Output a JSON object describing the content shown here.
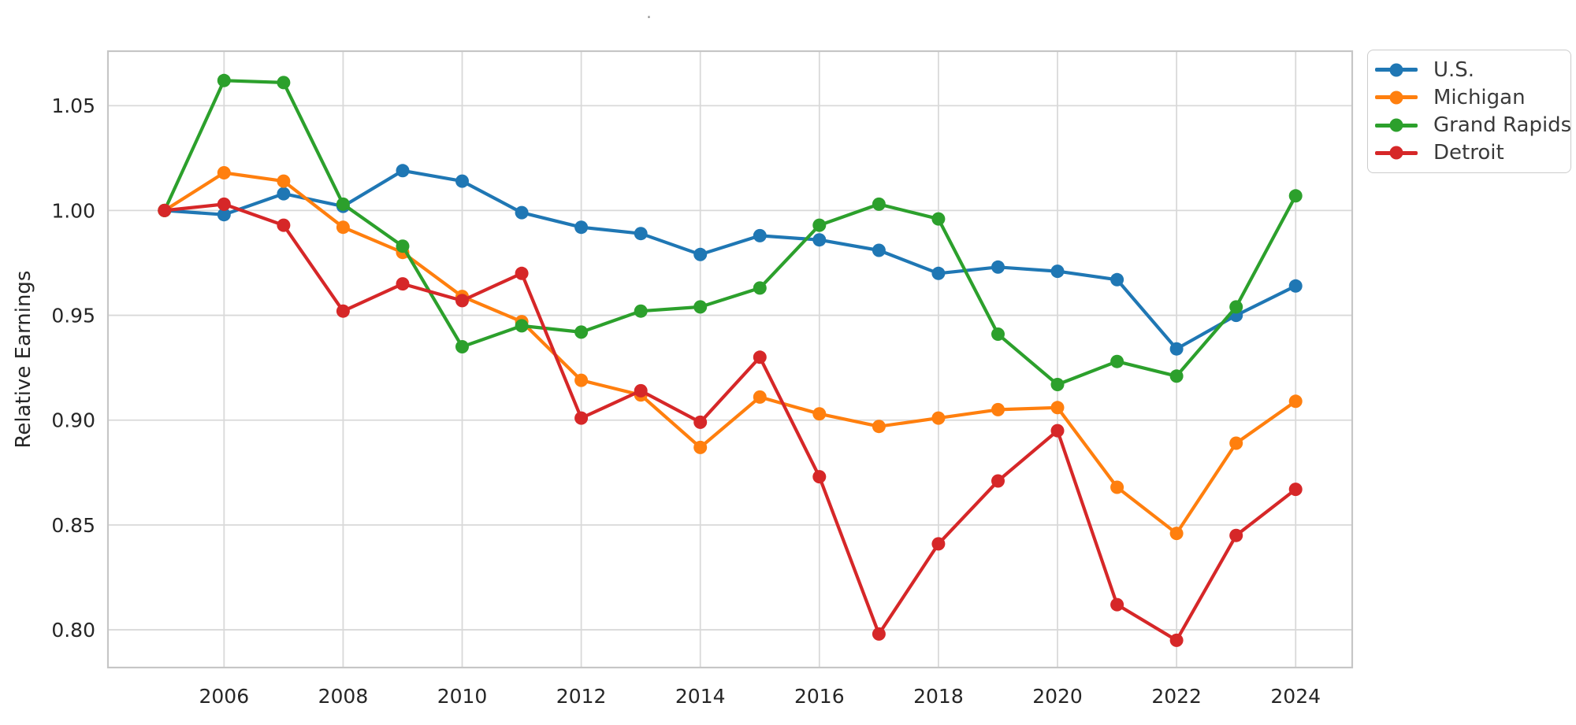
{
  "figure": {
    "title": ".",
    "ylabel": "Relative Earnings"
  },
  "chart_data": {
    "type": "line",
    "title": ".",
    "xlabel": "",
    "ylabel": "Relative Earnings",
    "grid": true,
    "legend_position": "outside-top-right",
    "xlim": [
      2004.05,
      2024.95
    ],
    "ylim": [
      0.782,
      1.076
    ],
    "xticks": [
      2006,
      2008,
      2010,
      2012,
      2014,
      2016,
      2018,
      2020,
      2022,
      2024
    ],
    "yticks": [
      1.05,
      1.0,
      0.95,
      0.9,
      0.85,
      0.8
    ],
    "x": [
      2005,
      2006,
      2007,
      2008,
      2009,
      2010,
      2011,
      2012,
      2013,
      2014,
      2015,
      2016,
      2017,
      2018,
      2019,
      2020,
      2021,
      2022,
      2023,
      2024
    ],
    "series": [
      {
        "name": "U.S.",
        "color": "#1f77b4",
        "values": [
          1.0,
          0.998,
          1.008,
          1.002,
          1.019,
          1.014,
          0.999,
          0.992,
          0.989,
          0.979,
          0.988,
          0.986,
          0.981,
          0.97,
          0.973,
          0.971,
          0.967,
          0.934,
          0.95,
          0.964
        ]
      },
      {
        "name": "Michigan",
        "color": "#ff7f0e",
        "values": [
          1.0,
          1.018,
          1.014,
          0.992,
          0.98,
          0.959,
          0.947,
          0.919,
          0.912,
          0.887,
          0.911,
          0.903,
          0.897,
          0.901,
          0.905,
          0.906,
          0.868,
          0.846,
          0.889,
          0.909
        ]
      },
      {
        "name": "Grand Rapids",
        "color": "#2ca02c",
        "values": [
          1.0,
          1.062,
          1.061,
          1.003,
          0.983,
          0.935,
          0.945,
          0.942,
          0.952,
          0.954,
          0.963,
          0.993,
          1.003,
          0.996,
          0.941,
          0.917,
          0.928,
          0.921,
          0.954,
          1.007
        ]
      },
      {
        "name": "Detroit",
        "color": "#d62728",
        "values": [
          1.0,
          1.003,
          0.993,
          0.952,
          0.965,
          0.957,
          0.97,
          0.901,
          0.914,
          0.899,
          0.93,
          0.873,
          0.798,
          0.841,
          0.871,
          0.895,
          0.812,
          0.795,
          0.845,
          0.867
        ]
      }
    ]
  }
}
